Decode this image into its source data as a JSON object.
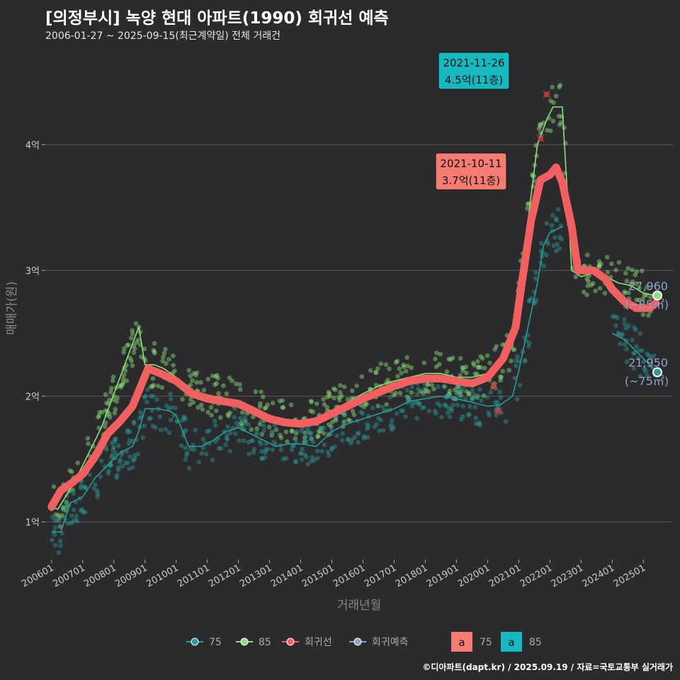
{
  "title": "[의정부시] 녹양 현대 아파트(1990) 회귀선 예측",
  "subtitle": "2006-01-27 ~ 2025-09-15(최근계약일) 전체 거래건",
  "credit": "©디아파트(dapt.kr) / 2025.09.19 / 자료=국토교통부 실거래가",
  "chart_data": {
    "type": "line",
    "xlabel": "거래년월",
    "ylabel": "매매가(원)",
    "xlim": [
      2005.8,
      2025.95
    ],
    "ylim": [
      0.7,
      4.7
    ],
    "x_ticks": [
      {
        "value": 2006.0,
        "label": "200601"
      },
      {
        "value": 2007.0,
        "label": "200701"
      },
      {
        "value": 2008.0,
        "label": "200801"
      },
      {
        "value": 2009.0,
        "label": "200901"
      },
      {
        "value": 2010.0,
        "label": "201001"
      },
      {
        "value": 2011.0,
        "label": "201101"
      },
      {
        "value": 2012.0,
        "label": "201201"
      },
      {
        "value": 2013.0,
        "label": "201301"
      },
      {
        "value": 2014.0,
        "label": "201401"
      },
      {
        "value": 2015.0,
        "label": "201501"
      },
      {
        "value": 2016.0,
        "label": "201601"
      },
      {
        "value": 2017.0,
        "label": "201701"
      },
      {
        "value": 2018.0,
        "label": "201801"
      },
      {
        "value": 2019.0,
        "label": "201901"
      },
      {
        "value": 2020.0,
        "label": "202001"
      },
      {
        "value": 2021.0,
        "label": "202101"
      },
      {
        "value": 2022.0,
        "label": "202201"
      },
      {
        "value": 2023.0,
        "label": "202301"
      },
      {
        "value": 2024.0,
        "label": "202401"
      },
      {
        "value": 2025.0,
        "label": "202501"
      }
    ],
    "y_ticks": [
      {
        "value": 1,
        "label": "1억"
      },
      {
        "value": 2,
        "label": "2억"
      },
      {
        "value": 3,
        "label": "3억"
      },
      {
        "value": 4,
        "label": "4억"
      }
    ],
    "colors": {
      "s75": "#2a9a9a",
      "s85": "#8ee07a",
      "regression": "#f06060",
      "forecast": "#8fa3c8",
      "background": "#2b2b2d",
      "grid": "#5a5a5a"
    },
    "series": [
      {
        "name": "75",
        "color": "#2a9a9a",
        "x": [
          2006.0,
          2006.3,
          2006.6,
          2007.0,
          2007.4,
          2007.8,
          2008.2,
          2008.6,
          2008.8,
          2009.0,
          2009.4,
          2009.8,
          2010.0,
          2010.4,
          2010.8,
          2011.2,
          2011.6,
          2012.0,
          2012.4,
          2012.8,
          2013.2,
          2013.6,
          2014.0,
          2014.5,
          2015.0,
          2015.5,
          2016.0,
          2016.5,
          2017.0,
          2017.5,
          2018.0,
          2018.5,
          2019.0,
          2019.5,
          2020.0,
          2020.4,
          2020.8,
          2021.0,
          2021.3,
          2021.6,
          2021.8,
          2022.0,
          2022.4,
          2024.0,
          2024.4,
          2024.8,
          2025.2,
          2025.4
        ],
        "values": [
          0.92,
          0.92,
          1.15,
          1.2,
          1.35,
          1.45,
          1.55,
          1.6,
          1.72,
          1.9,
          1.9,
          1.88,
          1.85,
          1.6,
          1.6,
          1.65,
          1.72,
          1.75,
          1.7,
          1.65,
          1.6,
          1.62,
          1.62,
          1.6,
          1.72,
          1.78,
          1.82,
          1.86,
          1.9,
          1.96,
          1.98,
          2.0,
          1.98,
          1.95,
          1.92,
          1.93,
          2.0,
          2.2,
          2.55,
          2.9,
          3.2,
          3.3,
          3.35,
          2.5,
          2.45,
          2.35,
          2.25,
          2.19
        ]
      },
      {
        "name": "85",
        "color": "#8ee07a",
        "x": [
          2006.0,
          2006.2,
          2006.4,
          2006.7,
          2007.0,
          2007.3,
          2007.6,
          2007.9,
          2008.2,
          2008.5,
          2008.8,
          2009.0,
          2009.3,
          2009.6,
          2010.0,
          2010.4,
          2010.8,
          2011.2,
          2011.6,
          2012.0,
          2012.4,
          2012.8,
          2013.2,
          2013.6,
          2014.0,
          2014.5,
          2015.0,
          2015.5,
          2016.0,
          2016.5,
          2017.0,
          2017.5,
          2018.0,
          2018.5,
          2019.0,
          2019.5,
          2020.0,
          2020.4,
          2020.8,
          2021.0,
          2021.3,
          2021.6,
          2021.9,
          2022.1,
          2022.4,
          2022.7,
          2023.0,
          2023.4,
          2023.8,
          2024.2,
          2024.6,
          2025.0,
          2025.4
        ],
        "values": [
          1.12,
          1.1,
          1.18,
          1.3,
          1.45,
          1.6,
          1.75,
          1.95,
          2.15,
          2.35,
          2.55,
          2.25,
          2.25,
          2.22,
          2.15,
          2.05,
          2.02,
          2.0,
          1.98,
          1.95,
          1.9,
          1.86,
          1.82,
          1.8,
          1.8,
          1.82,
          1.88,
          1.95,
          2.02,
          2.08,
          2.12,
          2.15,
          2.18,
          2.18,
          2.15,
          2.15,
          2.18,
          2.25,
          2.4,
          2.8,
          3.4,
          4.0,
          4.2,
          4.3,
          4.3,
          3.0,
          2.95,
          2.98,
          2.95,
          2.9,
          2.88,
          2.82,
          2.8
        ]
      },
      {
        "name": "회귀선",
        "color": "#f06060",
        "x": [
          2006.0,
          2006.3,
          2006.6,
          2007.0,
          2007.4,
          2007.8,
          2008.2,
          2008.6,
          2008.9,
          2009.1,
          2009.5,
          2010.0,
          2010.5,
          2011.0,
          2011.5,
          2012.0,
          2012.5,
          2013.0,
          2013.5,
          2014.0,
          2014.5,
          2015.0,
          2015.5,
          2016.0,
          2016.5,
          2017.0,
          2017.5,
          2018.0,
          2018.5,
          2019.0,
          2019.5,
          2020.0,
          2020.5,
          2020.9,
          2021.1,
          2021.4,
          2021.7,
          2022.0,
          2022.2,
          2022.4,
          2022.7,
          2022.9,
          2023.0,
          2023.4,
          2023.8,
          2024.0,
          2024.4,
          2024.8,
          2025.2,
          2025.4
        ],
        "values": [
          1.12,
          1.25,
          1.3,
          1.38,
          1.52,
          1.7,
          1.8,
          1.92,
          2.1,
          2.22,
          2.18,
          2.12,
          2.02,
          1.98,
          1.96,
          1.94,
          1.88,
          1.82,
          1.79,
          1.78,
          1.8,
          1.86,
          1.92,
          1.98,
          2.03,
          2.08,
          2.12,
          2.14,
          2.14,
          2.12,
          2.1,
          2.15,
          2.3,
          2.55,
          2.9,
          3.4,
          3.72,
          3.76,
          3.82,
          3.7,
          3.35,
          3.0,
          3.0,
          3.0,
          2.93,
          2.85,
          2.75,
          2.7,
          2.7,
          2.74
        ]
      },
      {
        "name": "회귀예측",
        "color": "#8fa3c8",
        "x": [],
        "values": []
      }
    ],
    "end_labels": [
      {
        "series": "85",
        "x": 2025.45,
        "y": 2.8,
        "value": "27,960",
        "area": "(~85㎡)"
      },
      {
        "series": "75",
        "x": 2025.45,
        "y": 2.19,
        "value": "21,950",
        "area": "(~75㎡)"
      }
    ],
    "annotations": [
      {
        "date": "2021-11-26",
        "text": "4.5억(11층)",
        "x": 2021.9,
        "y": 4.4,
        "color": "#17b8c0"
      },
      {
        "date": "2021-10-11",
        "text": "3.7억(11층)",
        "x": 2021.78,
        "y": 3.7,
        "color": "#f47c72"
      }
    ],
    "x_markers": [
      {
        "x": 2021.9,
        "y": 4.4
      },
      {
        "x": 2021.7,
        "y": 4.05
      },
      {
        "x": 2020.2,
        "y": 2.08
      },
      {
        "x": 2020.35,
        "y": 1.88
      }
    ],
    "legend": {
      "position": "bottom",
      "line_items": [
        {
          "label": "75",
          "color": "#2a9a9a"
        },
        {
          "label": "85",
          "color": "#8ee07a"
        },
        {
          "label": "회귀선",
          "color": "#f06060"
        },
        {
          "label": "회귀예측",
          "color": "#8fa3c8"
        }
      ],
      "box_items": [
        {
          "letter": "a",
          "label": "75",
          "color": "#f47c72"
        },
        {
          "letter": "a",
          "label": "85",
          "color": "#17b8c0"
        }
      ]
    }
  }
}
